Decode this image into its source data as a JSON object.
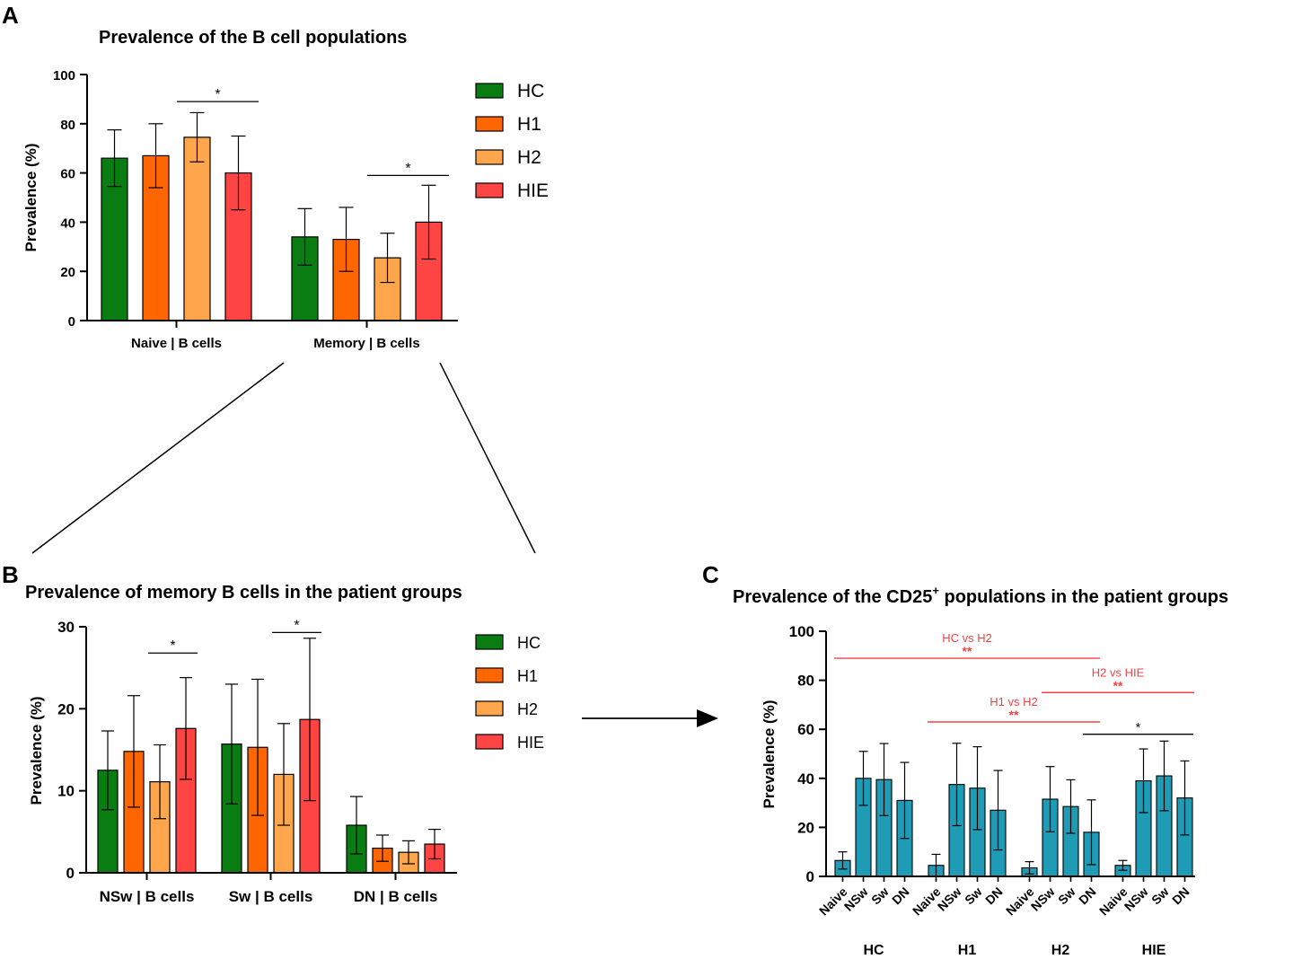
{
  "panel_labels": {
    "a": "A",
    "b": "B",
    "c": "C"
  },
  "colors": {
    "HC": "#0a7d12",
    "H1": "#ff6600",
    "H2": "#ffa64d",
    "HIE": "#ff4444",
    "cd25": "#1f9bb5",
    "sig_red": "#ef4444",
    "black": "#000000"
  },
  "chart_data": [
    {
      "id": "A",
      "type": "bar",
      "title": "Prevalence of the B cell populations",
      "xlabel": "",
      "ylabel": "Prevalence (%)",
      "ylim": [
        0,
        100
      ],
      "yticks": [
        0,
        20,
        40,
        60,
        80,
        100
      ],
      "categories": [
        "Naive | B cells",
        "Memory | B cells"
      ],
      "legend": {
        "position": "right",
        "entries": [
          "HC",
          "H1",
          "H2",
          "HIE"
        ]
      },
      "series": [
        {
          "name": "HC",
          "values": [
            66,
            34
          ],
          "errors": [
            11.5,
            11.5
          ]
        },
        {
          "name": "H1",
          "values": [
            67,
            33
          ],
          "errors": [
            13,
            13
          ]
        },
        {
          "name": "H2",
          "values": [
            74.5,
            25.5
          ],
          "errors": [
            10,
            10
          ]
        },
        {
          "name": "HIE",
          "values": [
            60,
            40
          ],
          "errors": [
            15,
            15
          ]
        }
      ],
      "significance": [
        {
          "label": "*",
          "category": 0,
          "from": "H2",
          "to": "HIE",
          "y": 89
        },
        {
          "label": "*",
          "category": 1,
          "from": "H2",
          "to": "HIE",
          "y": 59
        }
      ]
    },
    {
      "id": "B",
      "type": "bar",
      "title": "Prevalence of memory B cells in the patient groups",
      "xlabel": "",
      "ylabel": "Prevalence (%)",
      "ylim": [
        0,
        30
      ],
      "yticks": [
        0,
        10,
        20,
        30
      ],
      "categories": [
        "NSw | B cells",
        "Sw | B cells",
        "DN | B cells"
      ],
      "legend": {
        "position": "right",
        "entries": [
          "HC",
          "H1",
          "H2",
          "HIE"
        ]
      },
      "series": [
        {
          "name": "HC",
          "values": [
            12.5,
            15.7,
            5.8
          ],
          "errors": [
            4.8,
            7.3,
            3.5
          ]
        },
        {
          "name": "H1",
          "values": [
            14.8,
            15.3,
            3.0
          ],
          "errors": [
            6.8,
            8.3,
            1.6
          ]
        },
        {
          "name": "H2",
          "values": [
            11.1,
            12.0,
            2.5
          ],
          "errors": [
            4.5,
            6.2,
            1.4
          ]
        },
        {
          "name": "HIE",
          "values": [
            17.6,
            18.7,
            3.5
          ],
          "errors": [
            6.2,
            9.9,
            1.8
          ]
        }
      ],
      "significance": [
        {
          "label": "*",
          "category": 0,
          "from": "H2",
          "to": "HIE",
          "y": 26.8
        },
        {
          "label": "*",
          "category": 1,
          "from": "H2",
          "to": "HIE",
          "y": 29.3
        }
      ]
    },
    {
      "id": "C",
      "type": "bar",
      "title": "Prevalence of the CD25",
      "title_sup": "+",
      "title_rest": " populations in the patient groups",
      "xlabel": "",
      "ylabel": "Prevalence (%)",
      "ylim": [
        0,
        100
      ],
      "yticks": [
        0,
        20,
        40,
        60,
        80,
        100
      ],
      "groups": [
        "HC",
        "H1",
        "H2",
        "HIE"
      ],
      "subcategories": [
        "Naive",
        "NSw",
        "Sw",
        "DN"
      ],
      "values": [
        [
          6.5,
          40.0,
          39.5,
          31.0
        ],
        [
          4.5,
          37.5,
          36.0,
          27.0
        ],
        [
          3.5,
          31.5,
          28.5,
          18.0
        ],
        [
          4.5,
          39.0,
          41.0,
          32.0
        ]
      ],
      "errors": [
        [
          3.5,
          11.0,
          14.7,
          15.5
        ],
        [
          4.5,
          16.8,
          16.9,
          16.2
        ],
        [
          2.5,
          13.3,
          10.9,
          13.2
        ],
        [
          2.0,
          13.0,
          14.2,
          15.1
        ]
      ],
      "significance": [
        {
          "label": "*",
          "color": "black",
          "from": [
            2,
            3
          ],
          "to": [
            3,
            3
          ],
          "y": 58
        },
        {
          "label": "**",
          "sublabel": "HC vs H2",
          "color": "red",
          "from": [
            0,
            0
          ],
          "to": [
            2,
            3
          ],
          "y": 89
        },
        {
          "label": "**",
          "sublabel": "H2 vs HIE",
          "color": "red",
          "from": [
            2,
            1
          ],
          "to": [
            3,
            3
          ],
          "y": 75
        },
        {
          "label": "**",
          "sublabel": "H1 vs H2",
          "color": "red",
          "from": [
            1,
            0
          ],
          "to": [
            2,
            3
          ],
          "y": 63
        }
      ]
    }
  ]
}
